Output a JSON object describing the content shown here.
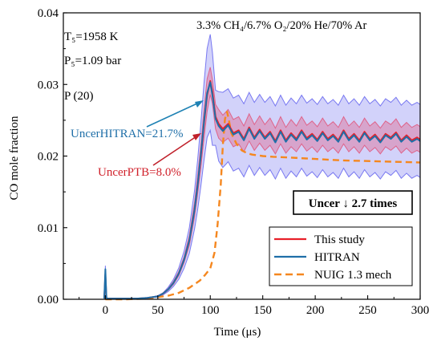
{
  "chart_data": {
    "type": "line",
    "xlabel": "Time (μs)",
    "ylabel": "CO mole fraction",
    "xlim": [
      -40,
      300
    ],
    "ylim": [
      0,
      0.04
    ],
    "x_ticks": [
      0,
      50,
      100,
      150,
      200,
      250,
      300
    ],
    "x_tick_labels": [
      "0",
      "50",
      "100",
      "150",
      "200",
      "250",
      "300"
    ],
    "y_ticks": [
      0,
      0.01,
      0.02,
      0.03,
      0.04
    ],
    "y_tick_labels": [
      "0.00",
      "0.01",
      "0.02",
      "0.03",
      "0.04"
    ],
    "grid": false,
    "legend_position": "bottom-right",
    "annotations": {
      "mixture": "3.3% CH₄/6.7% O₂/20% He/70% Ar",
      "temperature": "T₅=1958 K",
      "pressure": "P₅=1.09 bar",
      "line_label": "P (20)",
      "uncer_hitran": "UncerHITRAN=21.7%",
      "uncer_ptb": "UncerPTB=8.0%",
      "uncer_ratio": "Uncer ↓ 2.7 times"
    },
    "series": [
      {
        "name": "This study",
        "color": "#e8202a",
        "x": [
          -1,
          0,
          1,
          2,
          10,
          20,
          30,
          40,
          50,
          55,
          60,
          65,
          70,
          75,
          80,
          85,
          88,
          91,
          94,
          97,
          100,
          102,
          105,
          108,
          112,
          117,
          122,
          127,
          132,
          137,
          142,
          147,
          152,
          157,
          162,
          167,
          172,
          177,
          182,
          187,
          192,
          197,
          202,
          207,
          212,
          217,
          222,
          227,
          232,
          237,
          242,
          247,
          252,
          257,
          262,
          267,
          272,
          277,
          282,
          287,
          292,
          297,
          300
        ],
        "y": [
          0.0001,
          0.0035,
          0.0002,
          0.0001,
          0.0001,
          0.0001,
          0.0001,
          0.0002,
          0.0004,
          0.0008,
          0.0014,
          0.0023,
          0.0036,
          0.0055,
          0.0082,
          0.0125,
          0.016,
          0.02,
          0.0245,
          0.0285,
          0.0305,
          0.029,
          0.0255,
          0.0245,
          0.0238,
          0.0245,
          0.0232,
          0.0236,
          0.0224,
          0.024,
          0.0226,
          0.0237,
          0.0226,
          0.0234,
          0.0221,
          0.0236,
          0.0222,
          0.0232,
          0.0224,
          0.0236,
          0.0225,
          0.0231,
          0.0223,
          0.0234,
          0.0224,
          0.023,
          0.0222,
          0.0236,
          0.0224,
          0.0231,
          0.0222,
          0.0234,
          0.0224,
          0.023,
          0.0221,
          0.0231,
          0.0226,
          0.0233,
          0.0222,
          0.0229,
          0.0222,
          0.0226,
          0.0223
        ]
      },
      {
        "name": "HITRAN",
        "color": "#1f6fa8",
        "x": [
          -1,
          0,
          1,
          2,
          10,
          20,
          30,
          40,
          50,
          55,
          60,
          65,
          70,
          75,
          80,
          85,
          88,
          91,
          94,
          97,
          100,
          102,
          105,
          108,
          112,
          117,
          122,
          127,
          132,
          137,
          142,
          147,
          152,
          157,
          162,
          167,
          172,
          177,
          182,
          187,
          192,
          197,
          202,
          207,
          212,
          217,
          222,
          227,
          232,
          237,
          242,
          247,
          252,
          257,
          262,
          267,
          272,
          277,
          282,
          287,
          292,
          297,
          300
        ],
        "y": [
          0.0001,
          0.0042,
          0.0002,
          0.0001,
          0.0001,
          0.0001,
          0.0001,
          0.0002,
          0.0004,
          0.0008,
          0.0014,
          0.0023,
          0.0036,
          0.0055,
          0.0082,
          0.0125,
          0.016,
          0.0202,
          0.0248,
          0.0288,
          0.0303,
          0.0285,
          0.0252,
          0.0242,
          0.0235,
          0.0243,
          0.023,
          0.0234,
          0.0222,
          0.0238,
          0.0224,
          0.0235,
          0.0224,
          0.0232,
          0.0219,
          0.0234,
          0.022,
          0.023,
          0.0222,
          0.0234,
          0.0223,
          0.0229,
          0.0221,
          0.0232,
          0.0222,
          0.0228,
          0.022,
          0.0234,
          0.0222,
          0.0229,
          0.022,
          0.0232,
          0.0222,
          0.0228,
          0.0219,
          0.0229,
          0.0224,
          0.0231,
          0.022,
          0.0227,
          0.022,
          0.0224,
          0.0221
        ]
      },
      {
        "name": "NUIG 1.3 mech",
        "color": "#f5871f",
        "dashed": true,
        "x": [
          0,
          20,
          40,
          60,
          70,
          80,
          90,
          95,
          100,
          104,
          107,
          110,
          112,
          114,
          116,
          118,
          120,
          125,
          130,
          135,
          140,
          150,
          160,
          175,
          200,
          225,
          250,
          275,
          300
        ],
        "y": [
          0.0,
          0.0,
          0.0001,
          0.0005,
          0.0009,
          0.0016,
          0.0026,
          0.0034,
          0.0043,
          0.0065,
          0.0105,
          0.016,
          0.0215,
          0.0252,
          0.0262,
          0.0248,
          0.0232,
          0.0217,
          0.0208,
          0.0204,
          0.0202,
          0.02,
          0.0199,
          0.0198,
          0.0196,
          0.0194,
          0.0193,
          0.0192,
          0.0191
        ]
      }
    ],
    "bands": [
      {
        "color": "#6b6bf0",
        "opacity": 0.3,
        "x": [
          -1,
          0,
          1,
          2,
          10,
          20,
          30,
          40,
          50,
          55,
          60,
          65,
          70,
          75,
          80,
          85,
          88,
          91,
          94,
          97,
          100,
          102,
          105,
          108,
          112,
          117,
          122,
          127,
          132,
          137,
          142,
          147,
          152,
          157,
          162,
          167,
          172,
          177,
          182,
          187,
          192,
          197,
          202,
          207,
          212,
          217,
          222,
          227,
          232,
          237,
          242,
          247,
          252,
          257,
          262,
          267,
          272,
          277,
          282,
          287,
          292,
          297,
          300
        ],
        "upper": [
          0.0001,
          0.0047,
          0.0002,
          0.0001,
          0.0001,
          0.0001,
          0.0001,
          0.0002,
          0.0005,
          0.0009,
          0.0017,
          0.0028,
          0.0044,
          0.0067,
          0.01,
          0.0152,
          0.0195,
          0.0246,
          0.0302,
          0.035,
          0.037,
          0.0345,
          0.0292,
          0.029,
          0.0289,
          0.0294,
          0.0281,
          0.0285,
          0.0273,
          0.0289,
          0.0275,
          0.0286,
          0.0275,
          0.0283,
          0.027,
          0.0285,
          0.0271,
          0.0281,
          0.0273,
          0.0285,
          0.0274,
          0.028,
          0.0272,
          0.0283,
          0.0273,
          0.0279,
          0.0271,
          0.0285,
          0.0273,
          0.028,
          0.0271,
          0.0283,
          0.0273,
          0.0279,
          0.027,
          0.028,
          0.0275,
          0.0282,
          0.0271,
          0.0278,
          0.0271,
          0.0275,
          0.0272
        ],
        "lower": [
          0.0001,
          0.0036,
          0.0002,
          0.0001,
          0.0001,
          0.0001,
          0.0001,
          0.0002,
          0.0003,
          0.0006,
          0.0011,
          0.0018,
          0.0028,
          0.0043,
          0.0064,
          0.0098,
          0.0125,
          0.0158,
          0.0194,
          0.0226,
          0.0236,
          0.0215,
          0.0215,
          0.0193,
          0.0184,
          0.0192,
          0.0179,
          0.0183,
          0.0171,
          0.0187,
          0.0173,
          0.0184,
          0.0173,
          0.0181,
          0.0168,
          0.0183,
          0.0169,
          0.0179,
          0.0171,
          0.0183,
          0.0172,
          0.0178,
          0.017,
          0.0181,
          0.0171,
          0.0177,
          0.0169,
          0.0183,
          0.0171,
          0.0178,
          0.0169,
          0.0181,
          0.0171,
          0.0177,
          0.0168,
          0.0178,
          0.0173,
          0.018,
          0.0169,
          0.0176,
          0.0169,
          0.0173,
          0.017
        ]
      },
      {
        "color": "#e05a80",
        "opacity": 0.38,
        "x": [
          -1,
          0,
          1,
          2,
          10,
          20,
          30,
          40,
          50,
          55,
          60,
          65,
          70,
          75,
          80,
          85,
          88,
          91,
          94,
          97,
          100,
          102,
          105,
          108,
          112,
          117,
          122,
          127,
          132,
          137,
          142,
          147,
          152,
          157,
          162,
          167,
          172,
          177,
          182,
          187,
          192,
          197,
          202,
          207,
          212,
          217,
          222,
          227,
          232,
          237,
          242,
          247,
          252,
          257,
          262,
          267,
          272,
          277,
          282,
          287,
          292,
          297,
          300
        ],
        "upper": [
          0.0001,
          0.0038,
          0.0002,
          0.0001,
          0.0001,
          0.0001,
          0.0001,
          0.0002,
          0.0004,
          0.0009,
          0.0015,
          0.0025,
          0.0039,
          0.0059,
          0.0089,
          0.0135,
          0.0173,
          0.0216,
          0.0265,
          0.0308,
          0.0324,
          0.0307,
          0.0272,
          0.0265,
          0.0257,
          0.0265,
          0.0251,
          0.0255,
          0.0242,
          0.0259,
          0.0244,
          0.0256,
          0.0244,
          0.0253,
          0.0239,
          0.0255,
          0.024,
          0.0251,
          0.0242,
          0.0255,
          0.0243,
          0.0249,
          0.0241,
          0.0253,
          0.0242,
          0.0248,
          0.024,
          0.0255,
          0.0242,
          0.0249,
          0.024,
          0.0253,
          0.0242,
          0.0248,
          0.0239,
          0.0249,
          0.0244,
          0.0252,
          0.024,
          0.0247,
          0.024,
          0.0244,
          0.0241
        ],
        "lower": [
          0.0001,
          0.0032,
          0.0002,
          0.0001,
          0.0001,
          0.0001,
          0.0001,
          0.0002,
          0.0004,
          0.0007,
          0.0013,
          0.0021,
          0.0033,
          0.0051,
          0.0075,
          0.0115,
          0.0147,
          0.0184,
          0.0225,
          0.0262,
          0.0286,
          0.0273,
          0.0238,
          0.0225,
          0.0219,
          0.0225,
          0.0213,
          0.0217,
          0.0206,
          0.0221,
          0.0208,
          0.0218,
          0.0208,
          0.0215,
          0.0203,
          0.0217,
          0.0204,
          0.0213,
          0.0206,
          0.0217,
          0.0207,
          0.0213,
          0.0205,
          0.0215,
          0.0206,
          0.0212,
          0.0204,
          0.0217,
          0.0206,
          0.0213,
          0.0204,
          0.0215,
          0.0206,
          0.0212,
          0.0203,
          0.0213,
          0.0208,
          0.0214,
          0.0204,
          0.0211,
          0.0204,
          0.0208,
          0.0205
        ]
      }
    ]
  }
}
